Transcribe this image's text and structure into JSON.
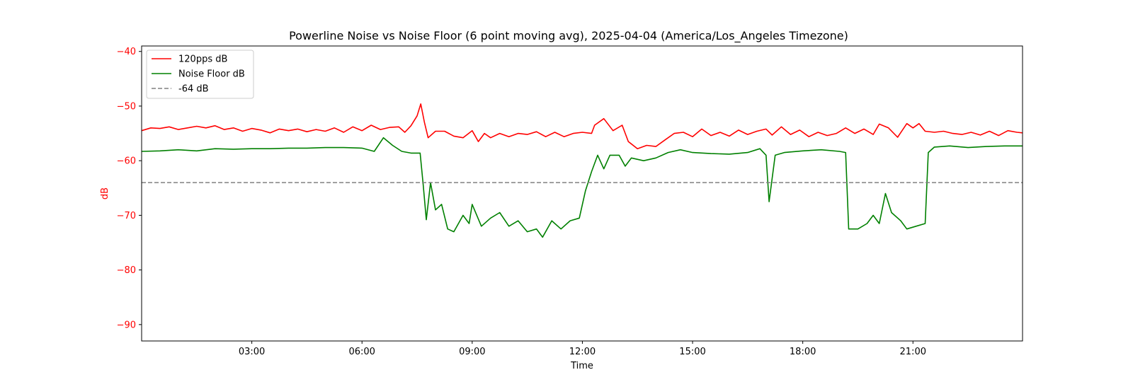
{
  "chart_data": {
    "type": "line",
    "title": "Powerline Noise vs Noise Floor (6 point moving avg), 2025-04-04 (America/Los_Angeles Timezone)",
    "xlabel": "Time",
    "ylabel": "dB",
    "xlim": [
      "00:00",
      "23:59"
    ],
    "ylim": [
      -93,
      -39
    ],
    "xticks": [
      "03:00",
      "06:00",
      "09:00",
      "12:00",
      "15:00",
      "18:00",
      "21:00"
    ],
    "yticks": [
      -40,
      -50,
      -60,
      -70,
      -80,
      -90
    ],
    "grid": false,
    "legend_position": "top-left",
    "colors": {
      "signal": "#ff0000",
      "floor": "#008000",
      "threshold": "#808080",
      "ylabel": "#ff0000",
      "yticks": "#ff0000"
    },
    "series": [
      {
        "name": "120pps dB",
        "color": "#ff0000",
        "style": "solid",
        "points": [
          [
            "00:00",
            -54.5
          ],
          [
            "00:15",
            -54.0
          ],
          [
            "00:30",
            -54.1
          ],
          [
            "00:45",
            -53.8
          ],
          [
            "01:00",
            -54.3
          ],
          [
            "01:15",
            -54.0
          ],
          [
            "01:30",
            -53.7
          ],
          [
            "01:45",
            -54.0
          ],
          [
            "02:00",
            -53.6
          ],
          [
            "02:15",
            -54.3
          ],
          [
            "02:30",
            -54.0
          ],
          [
            "02:45",
            -54.6
          ],
          [
            "03:00",
            -54.1
          ],
          [
            "03:15",
            -54.4
          ],
          [
            "03:30",
            -54.9
          ],
          [
            "03:45",
            -54.2
          ],
          [
            "04:00",
            -54.5
          ],
          [
            "04:15",
            -54.2
          ],
          [
            "04:30",
            -54.7
          ],
          [
            "04:45",
            -54.3
          ],
          [
            "05:00",
            -54.6
          ],
          [
            "05:15",
            -54.0
          ],
          [
            "05:30",
            -54.8
          ],
          [
            "05:45",
            -53.8
          ],
          [
            "06:00",
            -54.5
          ],
          [
            "06:15",
            -53.5
          ],
          [
            "06:30",
            -54.3
          ],
          [
            "06:45",
            -53.9
          ],
          [
            "07:00",
            -53.8
          ],
          [
            "07:10",
            -54.8
          ],
          [
            "07:20",
            -53.6
          ],
          [
            "07:30",
            -51.8
          ],
          [
            "07:36",
            -49.6
          ],
          [
            "07:42",
            -53.0
          ],
          [
            "07:48",
            -55.8
          ],
          [
            "08:00",
            -54.6
          ],
          [
            "08:15",
            -54.6
          ],
          [
            "08:30",
            -55.5
          ],
          [
            "08:45",
            -55.8
          ],
          [
            "09:00",
            -54.5
          ],
          [
            "09:10",
            -56.5
          ],
          [
            "09:20",
            -55.0
          ],
          [
            "09:30",
            -55.8
          ],
          [
            "09:45",
            -55.0
          ],
          [
            "10:00",
            -55.6
          ],
          [
            "10:15",
            -55.0
          ],
          [
            "10:30",
            -55.2
          ],
          [
            "10:45",
            -54.7
          ],
          [
            "11:00",
            -55.6
          ],
          [
            "11:15",
            -54.8
          ],
          [
            "11:30",
            -55.6
          ],
          [
            "11:45",
            -55.0
          ],
          [
            "12:00",
            -54.8
          ],
          [
            "12:15",
            -55.0
          ],
          [
            "12:20",
            -53.5
          ],
          [
            "12:35",
            -52.3
          ],
          [
            "12:50",
            -54.5
          ],
          [
            "13:05",
            -53.5
          ],
          [
            "13:15",
            -56.5
          ],
          [
            "13:30",
            -57.8
          ],
          [
            "13:45",
            -57.2
          ],
          [
            "14:00",
            -57.4
          ],
          [
            "14:15",
            -56.2
          ],
          [
            "14:30",
            -55.0
          ],
          [
            "14:45",
            -54.8
          ],
          [
            "15:00",
            -55.6
          ],
          [
            "15:15",
            -54.2
          ],
          [
            "15:30",
            -55.4
          ],
          [
            "15:45",
            -54.8
          ],
          [
            "16:00",
            -55.5
          ],
          [
            "16:15",
            -54.4
          ],
          [
            "16:30",
            -55.2
          ],
          [
            "16:45",
            -54.6
          ],
          [
            "17:00",
            -54.2
          ],
          [
            "17:10",
            -55.3
          ],
          [
            "17:25",
            -53.8
          ],
          [
            "17:40",
            -55.2
          ],
          [
            "17:55",
            -54.4
          ],
          [
            "18:10",
            -55.6
          ],
          [
            "18:25",
            -54.8
          ],
          [
            "18:40",
            -55.4
          ],
          [
            "18:55",
            -55.0
          ],
          [
            "19:10",
            -54.0
          ],
          [
            "19:25",
            -55.0
          ],
          [
            "19:40",
            -54.2
          ],
          [
            "19:55",
            -55.2
          ],
          [
            "20:05",
            -53.3
          ],
          [
            "20:20",
            -54.0
          ],
          [
            "20:35",
            -55.7
          ],
          [
            "20:50",
            -53.2
          ],
          [
            "21:00",
            -54.0
          ],
          [
            "21:10",
            -53.2
          ],
          [
            "21:20",
            -54.6
          ],
          [
            "21:35",
            -54.8
          ],
          [
            "21:50",
            -54.6
          ],
          [
            "22:05",
            -55.0
          ],
          [
            "22:20",
            -55.2
          ],
          [
            "22:35",
            -54.8
          ],
          [
            "22:50",
            -55.3
          ],
          [
            "23:05",
            -54.6
          ],
          [
            "23:20",
            -55.4
          ],
          [
            "23:35",
            -54.5
          ],
          [
            "23:50",
            -54.8
          ],
          [
            "23:59",
            -54.9
          ]
        ]
      },
      {
        "name": "Noise Floor dB",
        "color": "#008000",
        "style": "solid",
        "points": [
          [
            "00:00",
            -58.3
          ],
          [
            "00:30",
            -58.2
          ],
          [
            "01:00",
            -58.0
          ],
          [
            "01:30",
            -58.2
          ],
          [
            "02:00",
            -57.8
          ],
          [
            "02:30",
            -57.9
          ],
          [
            "03:00",
            -57.8
          ],
          [
            "03:30",
            -57.8
          ],
          [
            "04:00",
            -57.7
          ],
          [
            "04:30",
            -57.7
          ],
          [
            "05:00",
            -57.6
          ],
          [
            "05:30",
            -57.6
          ],
          [
            "06:00",
            -57.7
          ],
          [
            "06:20",
            -58.3
          ],
          [
            "06:35",
            -55.8
          ],
          [
            "06:50",
            -57.2
          ],
          [
            "07:05",
            -58.3
          ],
          [
            "07:20",
            -58.6
          ],
          [
            "07:35",
            -58.6
          ],
          [
            "07:40",
            -64.5
          ],
          [
            "07:45",
            -70.8
          ],
          [
            "07:52",
            -64.0
          ],
          [
            "08:00",
            -69.0
          ],
          [
            "08:10",
            -68.0
          ],
          [
            "08:20",
            -72.5
          ],
          [
            "08:30",
            -73.0
          ],
          [
            "08:45",
            -70.0
          ],
          [
            "08:55",
            -71.5
          ],
          [
            "09:00",
            -68.0
          ],
          [
            "09:15",
            -72.0
          ],
          [
            "09:30",
            -70.5
          ],
          [
            "09:45",
            -69.5
          ],
          [
            "10:00",
            -72.0
          ],
          [
            "10:15",
            -71.0
          ],
          [
            "10:30",
            -73.0
          ],
          [
            "10:45",
            -72.5
          ],
          [
            "10:55",
            -74.0
          ],
          [
            "11:10",
            -71.0
          ],
          [
            "11:25",
            -72.5
          ],
          [
            "11:40",
            -71.0
          ],
          [
            "11:55",
            -70.5
          ],
          [
            "12:05",
            -65.5
          ],
          [
            "12:15",
            -62.0
          ],
          [
            "12:25",
            -59.0
          ],
          [
            "12:35",
            -61.5
          ],
          [
            "12:45",
            -59.0
          ],
          [
            "13:00",
            -59.0
          ],
          [
            "13:10",
            -61.0
          ],
          [
            "13:20",
            -59.5
          ],
          [
            "13:40",
            -60.0
          ],
          [
            "14:00",
            -59.5
          ],
          [
            "14:20",
            -58.5
          ],
          [
            "14:40",
            -58.0
          ],
          [
            "15:00",
            -58.5
          ],
          [
            "15:30",
            -58.7
          ],
          [
            "16:00",
            -58.8
          ],
          [
            "16:30",
            -58.5
          ],
          [
            "16:50",
            -57.8
          ],
          [
            "17:00",
            -59.0
          ],
          [
            "17:05",
            -67.5
          ],
          [
            "17:15",
            -59.0
          ],
          [
            "17:30",
            -58.5
          ],
          [
            "18:00",
            -58.2
          ],
          [
            "18:30",
            -58.0
          ],
          [
            "19:00",
            -58.3
          ],
          [
            "19:10",
            -58.5
          ],
          [
            "19:15",
            -72.5
          ],
          [
            "19:30",
            -72.5
          ],
          [
            "19:45",
            -71.5
          ],
          [
            "19:55",
            -70.0
          ],
          [
            "20:05",
            -71.5
          ],
          [
            "20:15",
            -66.0
          ],
          [
            "20:25",
            -69.5
          ],
          [
            "20:40",
            -71.0
          ],
          [
            "20:50",
            -72.5
          ],
          [
            "21:05",
            -72.0
          ],
          [
            "21:20",
            -71.5
          ],
          [
            "21:25",
            -58.5
          ],
          [
            "21:35",
            -57.5
          ],
          [
            "22:00",
            -57.3
          ],
          [
            "22:30",
            -57.6
          ],
          [
            "23:00",
            -57.4
          ],
          [
            "23:30",
            -57.3
          ],
          [
            "23:59",
            -57.3
          ]
        ]
      },
      {
        "name": "-64 dB",
        "color": "#808080",
        "style": "dashed",
        "points": [
          [
            "00:00",
            -64
          ],
          [
            "23:59",
            -64
          ]
        ]
      }
    ]
  }
}
